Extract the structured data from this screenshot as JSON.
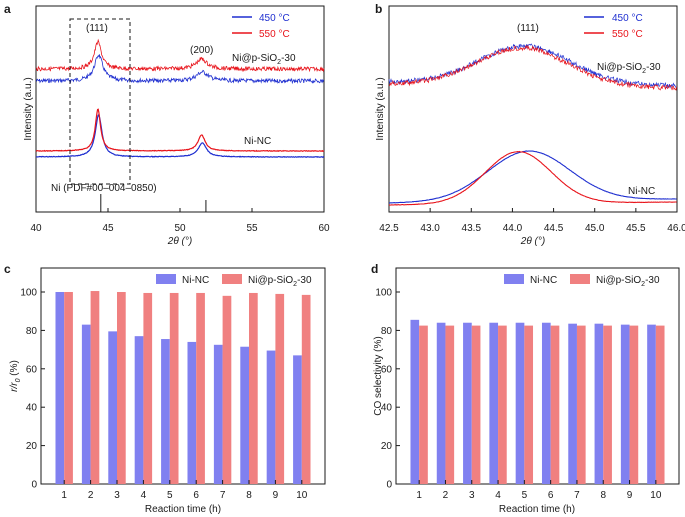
{
  "figure": {
    "panel_labels": [
      "a",
      "b",
      "c",
      "d"
    ]
  },
  "colors": {
    "blue": "#1f2fd0",
    "red": "#e8141b",
    "bar_blue": "#8080f0",
    "bar_red": "#f08080",
    "axis": "#1a1a1a"
  },
  "chart_data": [
    {
      "type": "line",
      "panel": "a",
      "xlabel": "2θ (°)",
      "ylabel": "Intensity (a.u.)",
      "xlim": [
        40,
        60
      ],
      "xticks": [
        "40",
        "45",
        "50",
        "55",
        "60"
      ],
      "legend": [
        "450 °C",
        "550 °C"
      ],
      "annotations": {
        "peak_111": "(111)",
        "peak_200": "(200)",
        "sample_top": "Ni@p-SiO",
        "sample_top_sub": "2",
        "sample_top_suffix": "-30",
        "sample_bottom": "Ni-NC",
        "reference": "Ni (PDF#00–004–0850)"
      },
      "peaks_2theta": [
        44.3,
        51.5
      ],
      "reference_lines_2theta": [
        44.5,
        51.8
      ],
      "series": [
        {
          "name": "450 °C",
          "color_key": "blue",
          "sample": "Ni@p-SiO2-30",
          "noisy": true
        },
        {
          "name": "550 °C",
          "color_key": "red",
          "sample": "Ni@p-SiO2-30",
          "noisy": true
        },
        {
          "name": "450 °C",
          "color_key": "blue",
          "sample": "Ni-NC",
          "noisy": false
        },
        {
          "name": "550 °C",
          "color_key": "red",
          "sample": "Ni-NC",
          "noisy": false
        }
      ]
    },
    {
      "type": "line",
      "panel": "b",
      "xlabel": "2θ (°)",
      "ylabel": "Intensity (a.u.)",
      "xlim": [
        42.5,
        46.0
      ],
      "xticks": [
        "42.5",
        "43.0",
        "43.5",
        "44.0",
        "44.5",
        "45.0",
        "45.5",
        "46.0"
      ],
      "legend": [
        "450 °C",
        "550 °C"
      ],
      "annotations": {
        "peak_111": "(111)",
        "sample_top": "Ni@p-SiO",
        "sample_top_sub": "2",
        "sample_top_suffix": "-30",
        "sample_bottom": "Ni-NC"
      },
      "peak_center_2theta": 44.15
    },
    {
      "type": "bar",
      "panel": "c",
      "xlabel": "Reaction time (h)",
      "ylabel_main": "r/r",
      "ylabel_sub": "0",
      "ylabel_unit": " (%)",
      "ylim": [
        0,
        100
      ],
      "yticks": [
        "0",
        "20",
        "40",
        "60",
        "80",
        "100"
      ],
      "categories": [
        "1",
        "2",
        "3",
        "4",
        "5",
        "6",
        "7",
        "8",
        "9",
        "10"
      ],
      "legend_main": [
        "Ni-NC",
        "Ni@p-SiO"
      ],
      "legend_sub": "2",
      "legend_suffix": "-30",
      "series": [
        {
          "name": "Ni-NC",
          "values": [
            100,
            83,
            79.5,
            77,
            75.5,
            74,
            72.5,
            71.5,
            69.5,
            67
          ]
        },
        {
          "name": "Ni@p-SiO2-30",
          "values": [
            100,
            100.5,
            100,
            99.5,
            99.5,
            99.5,
            98,
            99.5,
            99,
            98.5
          ]
        }
      ]
    },
    {
      "type": "bar",
      "panel": "d",
      "xlabel": "Reaction time (h)",
      "ylabel": "CO selectivity (%)",
      "ylim": [
        0,
        100
      ],
      "yticks": [
        "0",
        "20",
        "40",
        "60",
        "80",
        "100"
      ],
      "categories": [
        "1",
        "2",
        "3",
        "4",
        "5",
        "6",
        "7",
        "8",
        "9",
        "10"
      ],
      "legend_main": [
        "Ni-NC",
        "Ni@p-SiO"
      ],
      "legend_sub": "2",
      "legend_suffix": "-30",
      "series": [
        {
          "name": "Ni-NC",
          "values": [
            85.5,
            84,
            84,
            84,
            84,
            84,
            83.5,
            83.5,
            83,
            83
          ]
        },
        {
          "name": "Ni@p-SiO2-30",
          "values": [
            82.5,
            82.5,
            82.5,
            82.5,
            82.5,
            82.5,
            82.5,
            82.5,
            82.5,
            82.5
          ]
        }
      ]
    }
  ]
}
